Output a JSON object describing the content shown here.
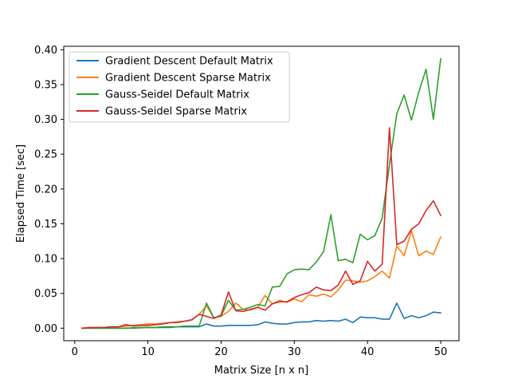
{
  "chart_data": {
    "type": "line",
    "title": "",
    "xlabel": "Matrix Size [n x n]",
    "ylabel": "Elapsed Time [sec]",
    "xlim": [
      -1.5,
      52.5
    ],
    "ylim": [
      -0.018,
      0.405
    ],
    "grid": false,
    "legend_position": "top-left",
    "x_ticks": [
      0,
      10,
      20,
      30,
      40,
      50
    ],
    "x_tick_labels": [
      "0",
      "10",
      "20",
      "30",
      "40",
      "50"
    ],
    "y_ticks": [
      0.0,
      0.05,
      0.1,
      0.15,
      0.2,
      0.25,
      0.3,
      0.35,
      0.4
    ],
    "y_tick_labels": [
      "0.00",
      "0.05",
      "0.10",
      "0.15",
      "0.20",
      "0.25",
      "0.30",
      "0.35",
      "0.40"
    ],
    "x": [
      1,
      2,
      3,
      4,
      5,
      6,
      7,
      8,
      9,
      10,
      11,
      12,
      13,
      14,
      15,
      16,
      17,
      18,
      19,
      20,
      21,
      22,
      23,
      24,
      25,
      26,
      27,
      28,
      29,
      30,
      31,
      32,
      33,
      34,
      35,
      36,
      37,
      38,
      39,
      40,
      41,
      42,
      43,
      44,
      45,
      46,
      47,
      48,
      49,
      50
    ],
    "series": [
      {
        "name": "Gradient Descent Default Matrix",
        "color": "#1f77b4",
        "values": [
          0.0,
          0.0,
          0.0,
          0.0,
          0.0,
          0.0,
          0.0,
          0.0,
          0.0005,
          0.001,
          0.001,
          0.001,
          0.001,
          0.002,
          0.002,
          0.002,
          0.002,
          0.006,
          0.003,
          0.003,
          0.004,
          0.004,
          0.004,
          0.004,
          0.005,
          0.009,
          0.007,
          0.006,
          0.006,
          0.008,
          0.009,
          0.009,
          0.011,
          0.01,
          0.011,
          0.01,
          0.013,
          0.008,
          0.016,
          0.015,
          0.015,
          0.013,
          0.013,
          0.036,
          0.014,
          0.018,
          0.015,
          0.018,
          0.023,
          0.022
        ]
      },
      {
        "name": "Gradient Descent Sparse Matrix",
        "color": "#ff7f0e",
        "values": [
          0.0,
          0.0,
          0.001,
          0.001,
          0.001,
          0.002,
          0.003,
          0.004,
          0.005,
          0.006,
          0.006,
          0.007,
          0.008,
          0.009,
          0.01,
          0.012,
          0.02,
          0.032,
          0.015,
          0.017,
          0.024,
          0.036,
          0.027,
          0.026,
          0.03,
          0.047,
          0.035,
          0.04,
          0.037,
          0.042,
          0.038,
          0.048,
          0.046,
          0.049,
          0.045,
          0.055,
          0.069,
          0.068,
          0.066,
          0.068,
          0.074,
          0.082,
          0.072,
          0.118,
          0.104,
          0.14,
          0.104,
          0.111,
          0.106,
          0.131
        ]
      },
      {
        "name": "Gauss-Seidel Default Matrix",
        "color": "#2ca02c",
        "values": [
          0.0,
          0.0,
          0.0,
          0.0,
          0.0,
          0.0,
          0.0,
          0.0005,
          0.001,
          0.001,
          0.001,
          0.002,
          0.002,
          0.002,
          0.003,
          0.003,
          0.003,
          0.036,
          0.015,
          0.018,
          0.04,
          0.026,
          0.027,
          0.03,
          0.034,
          0.032,
          0.059,
          0.06,
          0.078,
          0.084,
          0.085,
          0.084,
          0.095,
          0.11,
          0.163,
          0.097,
          0.099,
          0.094,
          0.135,
          0.127,
          0.133,
          0.158,
          0.235,
          0.308,
          0.335,
          0.299,
          0.339,
          0.372,
          0.3,
          0.387
        ]
      },
      {
        "name": "Gauss-Seidel Sparse Matrix",
        "color": "#d62728",
        "values": [
          0.0,
          0.001,
          0.001,
          0.001,
          0.002,
          0.002,
          0.005,
          0.003,
          0.004,
          0.004,
          0.005,
          0.006,
          0.008,
          0.008,
          0.01,
          0.012,
          0.02,
          0.017,
          0.014,
          0.019,
          0.052,
          0.025,
          0.024,
          0.027,
          0.03,
          0.026,
          0.035,
          0.038,
          0.038,
          0.044,
          0.048,
          0.051,
          0.059,
          0.055,
          0.054,
          0.062,
          0.082,
          0.063,
          0.068,
          0.096,
          0.082,
          0.092,
          0.288,
          0.12,
          0.125,
          0.142,
          0.15,
          0.169,
          0.183,
          0.162
        ]
      }
    ]
  }
}
